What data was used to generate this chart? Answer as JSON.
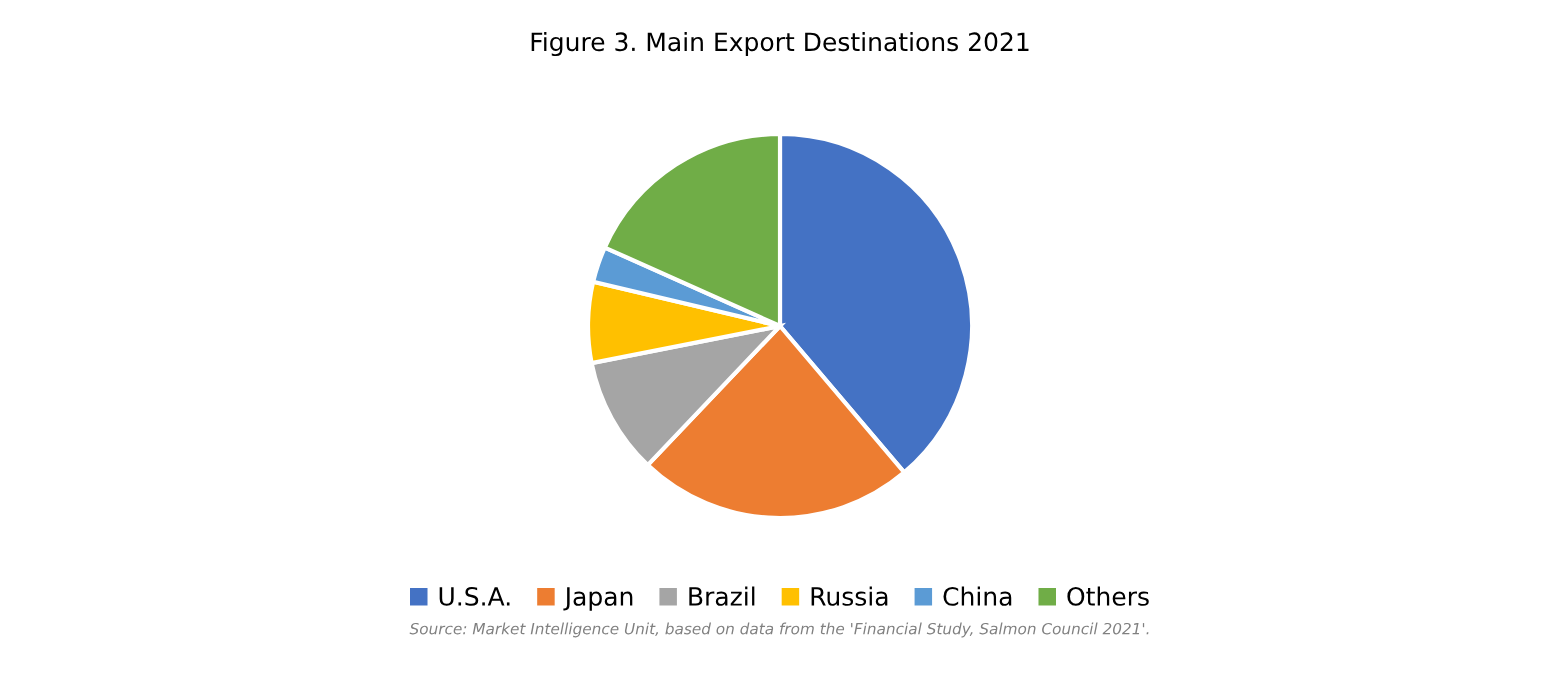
{
  "chart_data": {
    "type": "pie",
    "title": "Figure 3. Main Export Destinations 2021",
    "categories": [
      "U.S.A.",
      "Japan",
      "Brazil",
      "Russia",
      "China",
      "Others"
    ],
    "values": [
      38.8,
      23.3,
      9.8,
      6.8,
      3.0,
      18.3
    ],
    "colors": [
      "#4472c4",
      "#ed7d31",
      "#a5a5a5",
      "#ffc000",
      "#5b9bd5",
      "#70ad47"
    ],
    "legend": "bottom",
    "annotations": [
      "Source: Market Intelligence Unit, based on data from the 'Financial Study, Salmon Council 2021'."
    ]
  }
}
